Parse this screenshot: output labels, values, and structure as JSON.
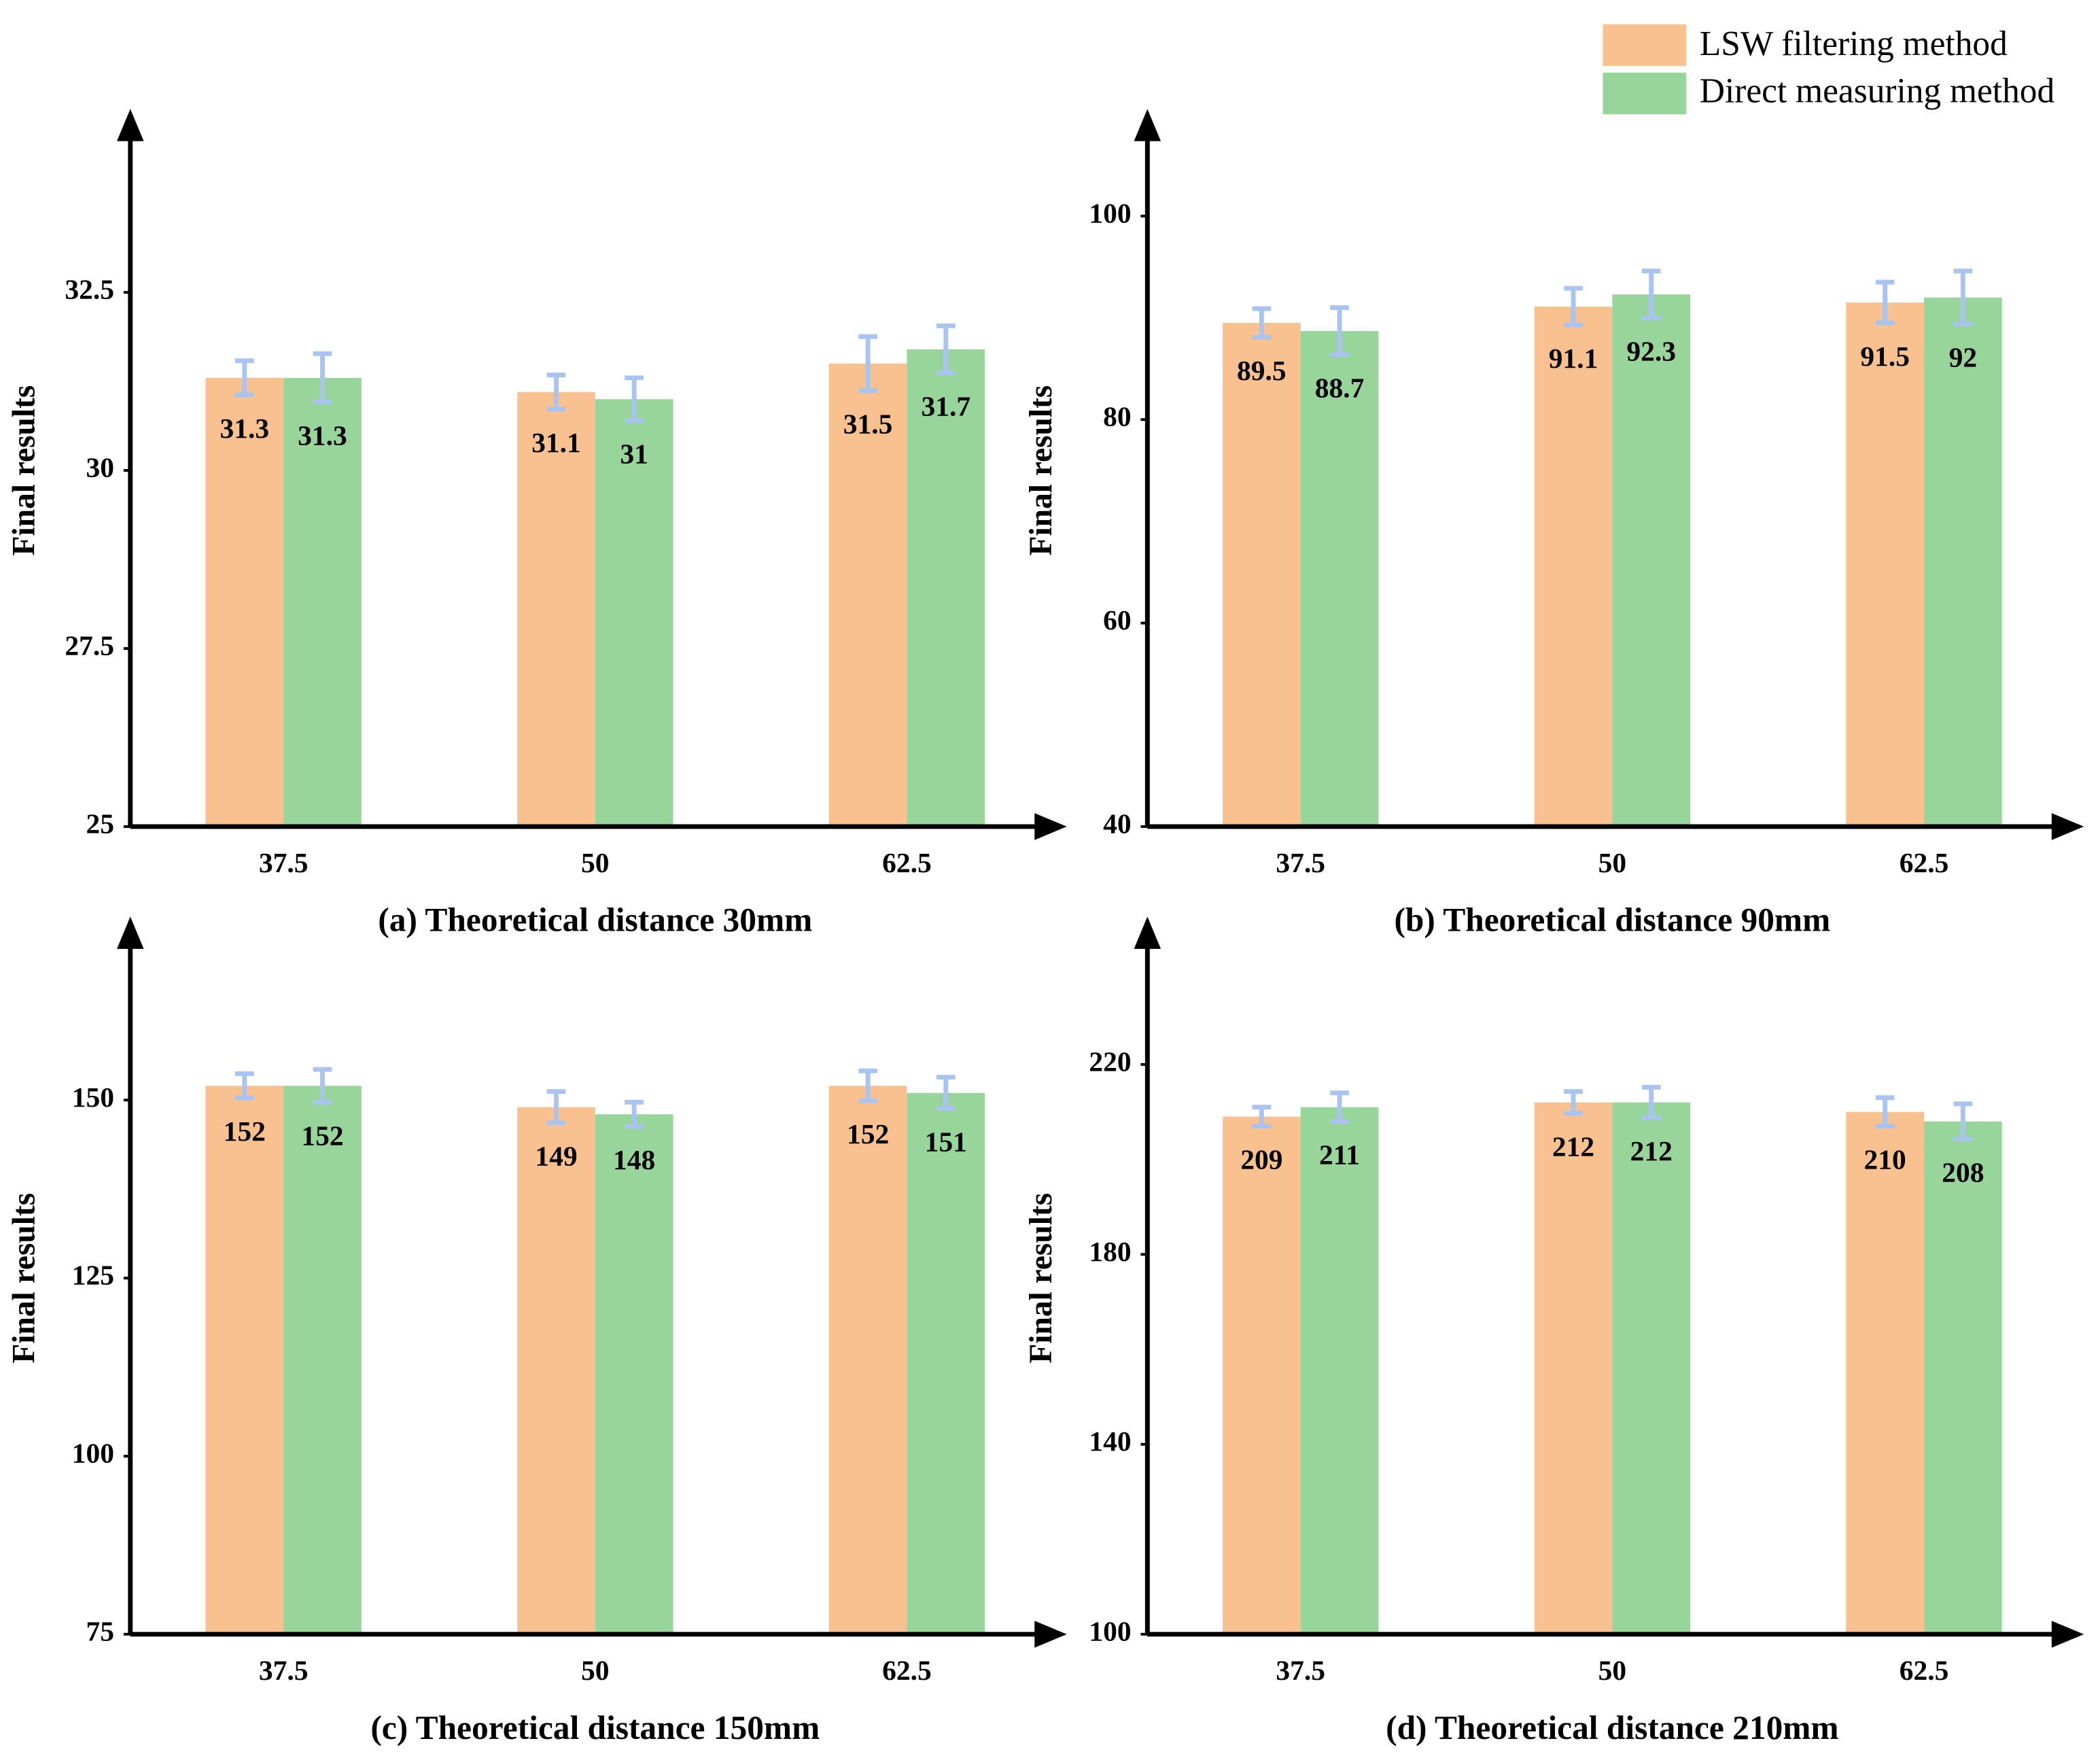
{
  "legend": {
    "position": "top-right",
    "items": [
      {
        "name": "LSW filtering method",
        "color": "#f9c190"
      },
      {
        "name": "Direct measuring method",
        "color": "#98d59b"
      }
    ]
  },
  "chart_data": [
    {
      "type": "bar",
      "title": "(a) Theoretical distance 30mm",
      "y_label": "Final results",
      "categories": [
        "37.5",
        "50",
        "62.5"
      ],
      "series": [
        {
          "values": [
            31.3,
            31.1,
            31.5
          ],
          "errors": [
            0.24,
            0.24,
            0.38
          ]
        },
        {
          "values": [
            31.3,
            31,
            31.7
          ],
          "errors": [
            0.34,
            0.3,
            0.33
          ]
        }
      ],
      "ylim": [
        25,
        35
      ],
      "yticks": [
        25,
        27.5,
        30,
        32.5
      ],
      "error_color": "#a9c4f0"
    },
    {
      "type": "bar",
      "title": "(b) Theoretical distance 90mm",
      "y_label": "Final results",
      "categories": [
        "37.5",
        "50",
        "62.5"
      ],
      "series": [
        {
          "values": [
            89.5,
            91.1,
            91.5
          ],
          "errors": [
            1.4,
            1.8,
            2
          ]
        },
        {
          "values": [
            88.7,
            92.3,
            92
          ],
          "errors": [
            2.3,
            2.3,
            2.6
          ]
        }
      ],
      "ylim": [
        40,
        110
      ],
      "yticks": [
        40,
        60,
        80,
        100
      ],
      "error_color": "#a9c4f0"
    },
    {
      "type": "bar",
      "title": "(c) Theoretical distance 150mm",
      "y_label": "Final results",
      "categories": [
        "37.5",
        "50",
        "62.5"
      ],
      "series": [
        {
          "values": [
            152,
            149,
            152
          ],
          "errors": [
            1.7,
            2.2,
            2.1
          ]
        },
        {
          "values": [
            152,
            148,
            151
          ],
          "errors": [
            2.3,
            1.7,
            2.2
          ]
        }
      ],
      "ylim": [
        75,
        175
      ],
      "yticks": [
        75,
        100,
        125,
        150
      ],
      "error_color": "#a9c4f0"
    },
    {
      "type": "bar",
      "title": "(d) Theoretical distance 210mm",
      "y_label": "Final results",
      "categories": [
        "37.5",
        "50",
        "62.5"
      ],
      "series": [
        {
          "values": [
            209,
            212,
            210
          ],
          "errors": [
            2,
            2.3,
            3
          ]
        },
        {
          "values": [
            211,
            212,
            208
          ],
          "errors": [
            3,
            3.2,
            3.7
          ]
        }
      ],
      "ylim": [
        100,
        250
      ],
      "yticks": [
        100,
        140,
        180,
        220
      ],
      "error_color": "#a9c4f0"
    }
  ]
}
